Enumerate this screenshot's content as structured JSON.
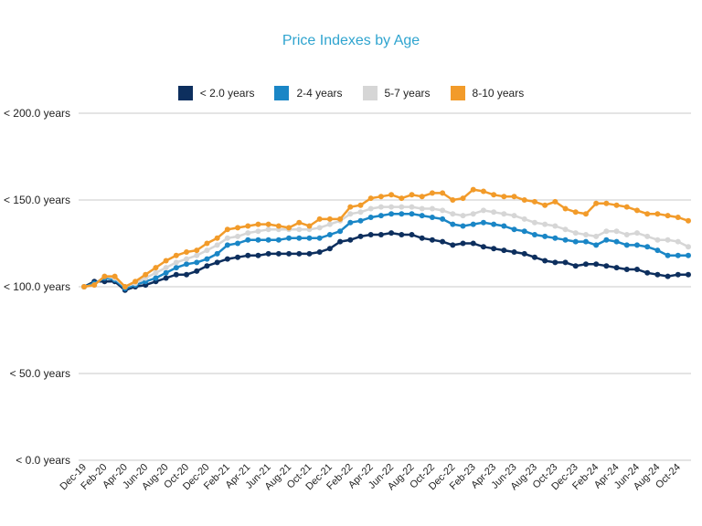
{
  "chart_data": {
    "type": "line",
    "title": "Price Indexes by Age",
    "xlabel": "",
    "ylabel": "",
    "ylim": [
      0,
      200
    ],
    "y_ticks": [
      {
        "value": 200,
        "label": "< 200.0 years"
      },
      {
        "value": 150,
        "label": "< 150.0 years"
      },
      {
        "value": 100,
        "label": "< 100.0 years"
      },
      {
        "value": 50,
        "label": "< 50.0 years"
      },
      {
        "value": 0,
        "label": "< 0.0 years"
      }
    ],
    "x_tick_labels": [
      "Dec-19",
      "Feb-20",
      "Apr-20",
      "Jun-20",
      "Aug-20",
      "Oct-20",
      "Dec-20",
      "Feb-21",
      "Apr-21",
      "Jun-21",
      "Aug-21",
      "Oct-21",
      "Dec-21",
      "Feb-22",
      "Apr-22",
      "Jun-22",
      "Aug-22",
      "Oct-22",
      "Dec-22",
      "Feb-23",
      "Apr-23",
      "Jun-23",
      "Aug-23",
      "Oct-23",
      "Dec-23",
      "Feb-24",
      "Apr-24",
      "Jun-24",
      "Aug-24",
      "Oct-24"
    ],
    "grid": true,
    "legend_position": "top",
    "series": [
      {
        "name": "< 2.0 years",
        "color": "#0d2f5e",
        "values": [
          100,
          103,
          103,
          103,
          98,
          100,
          101,
          103,
          105,
          107,
          107,
          109,
          112,
          114,
          116,
          117,
          118,
          118,
          119,
          119,
          119,
          119,
          119,
          120,
          122,
          126,
          127,
          129,
          130,
          130,
          131,
          130,
          130,
          128,
          127,
          126,
          124,
          125,
          125,
          123,
          122,
          121,
          120,
          119,
          117,
          115,
          114,
          114,
          112,
          113,
          113,
          112,
          111,
          110,
          110,
          108,
          107,
          106,
          107,
          107
        ]
      },
      {
        "name": "2-4 years",
        "color": "#1a86c6",
        "values": [
          100,
          102,
          105,
          104,
          99,
          101,
          103,
          105,
          108,
          111,
          113,
          114,
          116,
          119,
          124,
          125,
          127,
          127,
          127,
          127,
          128,
          128,
          128,
          128,
          130,
          132,
          137,
          138,
          140,
          141,
          142,
          142,
          142,
          141,
          140,
          139,
          136,
          135,
          136,
          137,
          136,
          135,
          133,
          132,
          130,
          129,
          128,
          127,
          126,
          126,
          124,
          127,
          126,
          124,
          124,
          123,
          121,
          118,
          118,
          118
        ]
      },
      {
        "name": "5-7 years",
        "color": "#d6d6d6",
        "values": [
          100,
          101,
          106,
          105,
          100,
          102,
          105,
          108,
          111,
          114,
          116,
          118,
          121,
          124,
          128,
          129,
          131,
          132,
          133,
          133,
          133,
          133,
          133,
          134,
          136,
          138,
          142,
          143,
          145,
          146,
          146,
          146,
          146,
          145,
          145,
          144,
          142,
          141,
          142,
          144,
          143,
          142,
          141,
          139,
          137,
          136,
          135,
          133,
          131,
          130,
          129,
          132,
          132,
          130,
          131,
          129,
          127,
          127,
          126,
          123
        ]
      },
      {
        "name": "8-10 years",
        "color": "#f29b2a",
        "values": [
          100,
          101,
          106,
          106,
          100,
          103,
          107,
          111,
          115,
          118,
          120,
          121,
          125,
          128,
          133,
          134,
          135,
          136,
          136,
          135,
          134,
          137,
          135,
          139,
          139,
          139,
          146,
          147,
          151,
          152,
          153,
          151,
          153,
          152,
          154,
          154,
          150,
          151,
          156,
          155,
          153,
          152,
          152,
          150,
          149,
          147,
          149,
          145,
          143,
          142,
          148,
          148,
          147,
          146,
          144,
          142,
          142,
          141,
          140,
          138
        ]
      }
    ]
  }
}
